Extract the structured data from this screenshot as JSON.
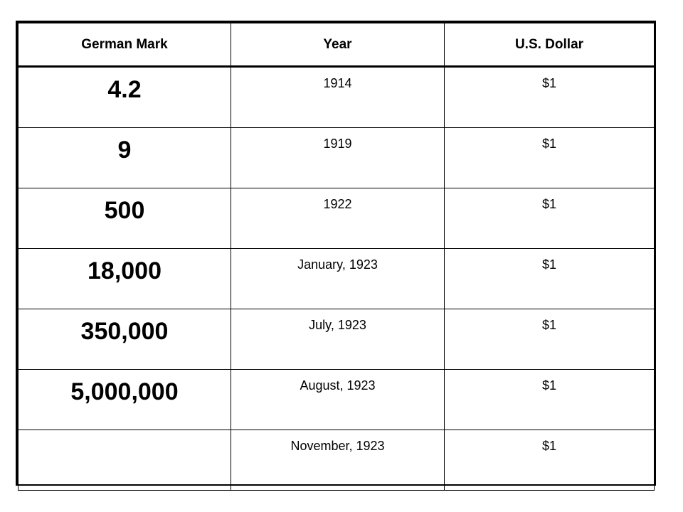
{
  "table": {
    "headers": {
      "german_mark": "German Mark",
      "year": "Year",
      "us_dollar": "U.S. Dollar"
    },
    "rows": [
      {
        "mark": "4.2",
        "year": "1914",
        "dollar": "$1"
      },
      {
        "mark": "9",
        "year": "1919",
        "dollar": "$1"
      },
      {
        "mark": "500",
        "year": "1922",
        "dollar": "$1"
      },
      {
        "mark": "18,000",
        "year": "January, 1923",
        "dollar": "$1"
      },
      {
        "mark": "350,000",
        "year": "July, 1923",
        "dollar": "$1"
      },
      {
        "mark": "5,000,000",
        "year": "August, 1923",
        "dollar": "$1"
      },
      {
        "mark": "",
        "year": "November, 1923",
        "dollar": "$1"
      }
    ]
  }
}
